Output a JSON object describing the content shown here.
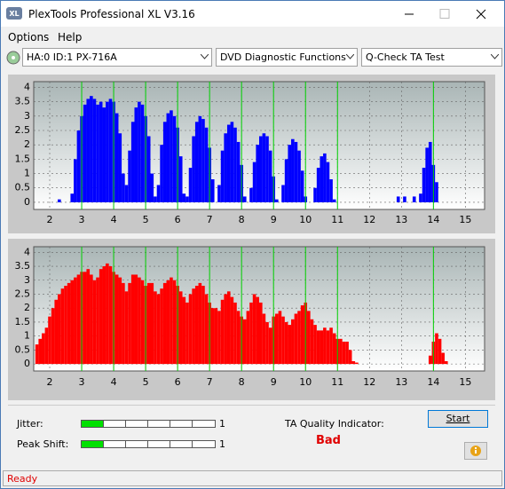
{
  "window": {
    "title": "PlexTools Professional XL V3.16"
  },
  "menu": [
    "Options",
    "Help"
  ],
  "toolbar": {
    "drive": "HA:0 ID:1  PX-716A",
    "function": "DVD Diagnostic Functions",
    "test": "Q-Check TA Test"
  },
  "chart_data": [
    {
      "type": "bar",
      "color": "#0000ff",
      "x": [
        1.6,
        1.7,
        1.8,
        1.9,
        2.0,
        2.1,
        2.2,
        2.3,
        2.4,
        2.5,
        2.6,
        2.7,
        2.8,
        2.9,
        3.0,
        3.1,
        3.2,
        3.3,
        3.4,
        3.5,
        3.6,
        3.7,
        3.8,
        3.9,
        4.0,
        4.1,
        4.2,
        4.3,
        4.4,
        4.5,
        4.6,
        4.7,
        4.8,
        4.9,
        5.0,
        5.1,
        5.2,
        5.3,
        5.4,
        5.5,
        5.6,
        5.7,
        5.8,
        5.9,
        6.0,
        6.1,
        6.2,
        6.3,
        6.4,
        6.5,
        6.6,
        6.7,
        6.8,
        6.9,
        7.0,
        7.1,
        7.2,
        7.3,
        7.4,
        7.5,
        7.6,
        7.7,
        7.8,
        7.9,
        8.0,
        8.1,
        8.2,
        8.3,
        8.4,
        8.5,
        8.6,
        8.7,
        8.8,
        8.9,
        9.0,
        9.1,
        9.2,
        9.3,
        9.4,
        9.5,
        9.6,
        9.7,
        9.8,
        9.9,
        10.0,
        10.1,
        10.2,
        10.3,
        10.4,
        10.5,
        10.6,
        10.7,
        10.8,
        10.9,
        11.0,
        11.1,
        11.2,
        11.3,
        11.4,
        11.5,
        11.6,
        11.7,
        11.8,
        11.9,
        12.0,
        12.1,
        12.2,
        12.3,
        12.4,
        12.5,
        12.6,
        12.7,
        12.8,
        12.9,
        13.0,
        13.1,
        13.2,
        13.3,
        13.4,
        13.5,
        13.6,
        13.7,
        13.8,
        13.9,
        14.0,
        14.1,
        14.2,
        14.3,
        14.4,
        14.5,
        14.6
      ],
      "values": [
        0,
        0,
        0,
        0,
        0,
        0,
        0,
        0.1,
        0,
        0,
        0,
        0.3,
        1.5,
        2.5,
        3.0,
        3.4,
        3.6,
        3.7,
        3.6,
        3.4,
        3.5,
        3.3,
        3.5,
        3.6,
        3.5,
        3.1,
        2.4,
        1.0,
        0.6,
        1.8,
        2.8,
        3.3,
        3.5,
        3.4,
        3.0,
        2.3,
        1.0,
        0.2,
        0.6,
        2.0,
        2.8,
        3.1,
        3.2,
        3.0,
        2.6,
        1.6,
        0.3,
        0.2,
        1.2,
        2.3,
        2.8,
        3.0,
        2.9,
        2.6,
        1.9,
        0.8,
        0,
        0.6,
        1.8,
        2.4,
        2.7,
        2.8,
        2.6,
        2.1,
        1.3,
        0.2,
        0,
        0.5,
        1.4,
        2.0,
        2.3,
        2.4,
        2.3,
        1.8,
        0.9,
        0.1,
        0,
        0.6,
        1.5,
        2.0,
        2.2,
        2.1,
        1.8,
        1.1,
        0.2,
        0,
        0,
        0.5,
        1.2,
        1.6,
        1.7,
        1.4,
        0.8,
        0.1,
        0,
        0,
        0,
        0,
        0,
        0,
        0,
        0,
        0,
        0,
        0,
        0,
        0,
        0,
        0,
        0,
        0,
        0,
        0,
        0.2,
        0,
        0.2,
        0,
        0,
        0.2,
        0,
        0.3,
        1.2,
        1.9,
        2.1,
        1.3,
        0.7,
        0,
        0,
        0,
        0,
        0
      ],
      "xlim": [
        1.5,
        15.6
      ],
      "xticks": [
        2,
        3,
        4,
        5,
        6,
        7,
        8,
        9,
        10,
        11,
        12,
        13,
        14,
        15
      ],
      "ylim": [
        -0.25,
        4.2
      ],
      "yticks": [
        0,
        0.5,
        1,
        1.5,
        2,
        2.5,
        3,
        3.5,
        4
      ],
      "markers": [
        3,
        4,
        5,
        6,
        7,
        8,
        9,
        10,
        11,
        14
      ],
      "marker_color": "#00d000",
      "grid": true
    },
    {
      "type": "bar",
      "color": "#ff0000",
      "x": [
        1.6,
        1.7,
        1.8,
        1.9,
        2.0,
        2.1,
        2.2,
        2.3,
        2.4,
        2.5,
        2.6,
        2.7,
        2.8,
        2.9,
        3.0,
        3.1,
        3.2,
        3.3,
        3.4,
        3.5,
        3.6,
        3.7,
        3.8,
        3.9,
        4.0,
        4.1,
        4.2,
        4.3,
        4.4,
        4.5,
        4.6,
        4.7,
        4.8,
        4.9,
        5.0,
        5.1,
        5.2,
        5.3,
        5.4,
        5.5,
        5.6,
        5.7,
        5.8,
        5.9,
        6.0,
        6.1,
        6.2,
        6.3,
        6.4,
        6.5,
        6.6,
        6.7,
        6.8,
        6.9,
        7.0,
        7.1,
        7.2,
        7.3,
        7.4,
        7.5,
        7.6,
        7.7,
        7.8,
        7.9,
        8.0,
        8.1,
        8.2,
        8.3,
        8.4,
        8.5,
        8.6,
        8.7,
        8.8,
        8.9,
        9.0,
        9.1,
        9.2,
        9.3,
        9.4,
        9.5,
        9.6,
        9.7,
        9.8,
        9.9,
        10.0,
        10.1,
        10.2,
        10.3,
        10.4,
        10.5,
        10.6,
        10.7,
        10.8,
        10.9,
        11.0,
        11.1,
        11.2,
        11.3,
        11.4,
        11.5,
        11.6,
        11.7,
        11.8,
        11.9,
        12.0,
        12.1,
        12.2,
        12.3,
        12.4,
        12.5,
        12.6,
        12.7,
        12.8,
        12.9,
        13.0,
        13.1,
        13.2,
        13.3,
        13.4,
        13.5,
        13.6,
        13.7,
        13.8,
        13.9,
        14.0,
        14.1,
        14.2,
        14.3,
        14.4,
        14.5,
        14.6
      ],
      "values": [
        0.7,
        0.9,
        1.1,
        1.3,
        1.7,
        2.0,
        2.3,
        2.5,
        2.7,
        2.8,
        2.9,
        3.0,
        3.1,
        3.2,
        3.3,
        3.3,
        3.4,
        3.2,
        3.0,
        3.1,
        3.4,
        3.5,
        3.6,
        3.5,
        3.3,
        3.2,
        3.1,
        2.9,
        2.6,
        2.9,
        3.2,
        3.2,
        3.1,
        3.0,
        2.8,
        2.9,
        2.9,
        2.6,
        2.5,
        2.7,
        2.9,
        3.0,
        3.1,
        3.0,
        2.8,
        2.6,
        2.4,
        2.2,
        2.5,
        2.7,
        2.8,
        2.9,
        2.8,
        2.5,
        2.2,
        2.0,
        2.0,
        1.9,
        2.3,
        2.5,
        2.6,
        2.4,
        2.2,
        1.9,
        1.7,
        1.6,
        1.9,
        2.2,
        2.5,
        2.4,
        2.2,
        1.8,
        1.5,
        1.3,
        1.7,
        1.8,
        1.9,
        1.7,
        1.5,
        1.4,
        1.6,
        1.8,
        1.9,
        2.1,
        2.2,
        1.9,
        1.6,
        1.4,
        1.2,
        1.2,
        1.3,
        1.2,
        1.3,
        1.1,
        0.9,
        0.9,
        0.8,
        0.8,
        0.5,
        0.1,
        0.05,
        0,
        0,
        0,
        0,
        0,
        0,
        0,
        0,
        0,
        0,
        0,
        0,
        0,
        0,
        0,
        0,
        0,
        0,
        0,
        0,
        0,
        0,
        0.3,
        0.8,
        1.1,
        0.9,
        0.4,
        0.1,
        0,
        0
      ],
      "xlim": [
        1.5,
        15.6
      ],
      "xticks": [
        2,
        3,
        4,
        5,
        6,
        7,
        8,
        9,
        10,
        11,
        12,
        13,
        14,
        15
      ],
      "ylim": [
        -0.25,
        4.2
      ],
      "yticks": [
        0,
        0.5,
        1,
        1.5,
        2,
        2.5,
        3,
        3.5,
        4
      ],
      "markers": [
        3,
        4,
        5,
        6,
        7,
        8,
        9,
        10,
        11,
        14
      ],
      "marker_color": "#00d000",
      "grid": true
    }
  ],
  "results": {
    "jitter": {
      "label": "Jitter:",
      "value": 1
    },
    "peak_shift": {
      "label": "Peak Shift:",
      "value": 1
    },
    "quality_label": "TA Quality Indicator:",
    "quality": "Bad",
    "start": "Start"
  },
  "status": "Ready"
}
